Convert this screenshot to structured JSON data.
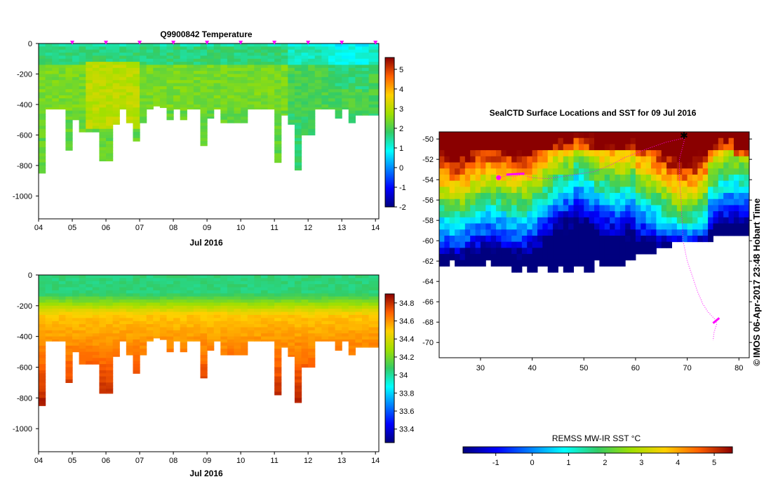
{
  "chart_data": [
    {
      "type": "heatmap",
      "name": "temperature-section",
      "title": "Q9900842  Temperature",
      "xlabel": "Jul 2016",
      "ylabel": "",
      "x_ticks": [
        "04",
        "05",
        "06",
        "07",
        "08",
        "09",
        "10",
        "11",
        "12",
        "13",
        "14"
      ],
      "y_ticks": [
        "0",
        "-200",
        "-400",
        "-600",
        "-800",
        "-1000"
      ],
      "xlim": [
        4.0,
        14.1
      ],
      "ylim": [
        -1150,
        0
      ],
      "profile_day": [
        4.0,
        4.2,
        4.4,
        4.6,
        4.8,
        5.0,
        5.2,
        5.4,
        5.6,
        5.8,
        6.0,
        6.2,
        6.4,
        6.6,
        6.8,
        7.0,
        7.2,
        7.4,
        7.6,
        7.8,
        8.0,
        8.2,
        8.4,
        8.6,
        8.8,
        9.0,
        9.2,
        9.4,
        9.6,
        9.8,
        10.0,
        10.2,
        10.4,
        10.6,
        10.8,
        11.0,
        11.2,
        11.4,
        11.6,
        11.8,
        12.0,
        12.2,
        12.4,
        12.6,
        12.8,
        13.0,
        13.2,
        13.4,
        13.6,
        13.8
      ],
      "profile_max_depth": [
        850,
        430,
        430,
        430,
        700,
        500,
        580,
        580,
        580,
        770,
        770,
        530,
        430,
        520,
        640,
        520,
        430,
        410,
        420,
        500,
        430,
        500,
        430,
        430,
        670,
        490,
        430,
        520,
        520,
        520,
        520,
        430,
        430,
        430,
        430,
        780,
        470,
        530,
        830,
        600,
        600,
        430,
        430,
        430,
        490,
        430,
        520,
        470,
        470,
        470
      ],
      "surface_markers_day": [
        5,
        6,
        7,
        8,
        9,
        10,
        11,
        12,
        13,
        14
      ],
      "colorbar_ticks": [
        "-2",
        "-1",
        "0",
        "1",
        "2",
        "3",
        "4",
        "5"
      ],
      "colorbar_range": [
        -2,
        5.6
      ],
      "colormap": "jet"
    },
    {
      "type": "heatmap",
      "name": "salinity-section",
      "title": "",
      "xlabel": "Jul 2016",
      "ylabel": "",
      "x_ticks": [
        "04",
        "05",
        "06",
        "07",
        "08",
        "09",
        "10",
        "11",
        "12",
        "13",
        "14"
      ],
      "y_ticks": [
        "0",
        "-200",
        "-400",
        "-600",
        "-800",
        "-1000"
      ],
      "xlim": [
        4.0,
        14.1
      ],
      "ylim": [
        -1150,
        0
      ],
      "colorbar_ticks": [
        "33.4",
        "33.6",
        "33.8",
        "34",
        "34.2",
        "34.4",
        "34.6",
        "34.8"
      ],
      "colorbar_range": [
        33.25,
        34.9
      ],
      "colormap": "jet"
    },
    {
      "type": "heatmap",
      "name": "sst-map",
      "title": "SealCTD Surface Locations and SST for 09 Jul 2016",
      "xlabel": "",
      "ylabel": "",
      "x_ticks": [
        "30",
        "40",
        "50",
        "60",
        "70",
        "80"
      ],
      "y_ticks": [
        "-50",
        "-52",
        "-54",
        "-56",
        "-58",
        "-60",
        "-62",
        "-64",
        "-66",
        "-68",
        "-70"
      ],
      "lon_range": [
        22,
        82
      ],
      "lat_range": [
        -71.5,
        -49.3
      ],
      "colorbar_label": "REMSS MW-IR SST °C",
      "colorbar_ticks": [
        "-1",
        "0",
        "1",
        "2",
        "3",
        "4",
        "5"
      ],
      "colorbar_range": [
        -1.9,
        5.5
      ],
      "colormap": "jet",
      "track_color": "#ff00ff",
      "track_west": [
        [
          33.5,
          -53.8
        ],
        [
          35,
          -53.6
        ],
        [
          36.5,
          -53.7
        ],
        [
          38,
          -53.5
        ],
        [
          40,
          -53.8
        ],
        [
          43,
          -53.9
        ],
        [
          47,
          -53.6
        ],
        [
          52,
          -53.2
        ],
        [
          55,
          -52.6
        ],
        [
          58,
          -51.8
        ],
        [
          62,
          -51.0
        ],
        [
          66,
          -50.3
        ],
        [
          69.5,
          -49.9
        ]
      ],
      "track_south": [
        [
          69.5,
          -50.0
        ],
        [
          68.5,
          -52
        ],
        [
          68.5,
          -54
        ],
        [
          68.8,
          -56
        ],
        [
          69.0,
          -58
        ],
        [
          69.2,
          -60
        ],
        [
          70,
          -62
        ],
        [
          71,
          -63.5
        ],
        [
          72,
          -65
        ],
        [
          73,
          -66.2
        ],
        [
          74,
          -67
        ],
        [
          75.5,
          -67.8
        ],
        [
          75.7,
          -68.2
        ],
        [
          75.2,
          -69
        ],
        [
          75.0,
          -69.8
        ]
      ]
    }
  ],
  "sst_colorbar_label": "REMSS MW-IR SST °C",
  "timestamp": "IMOS 06-Apr-2017 23:48 Hobart Time",
  "copyright": "©"
}
